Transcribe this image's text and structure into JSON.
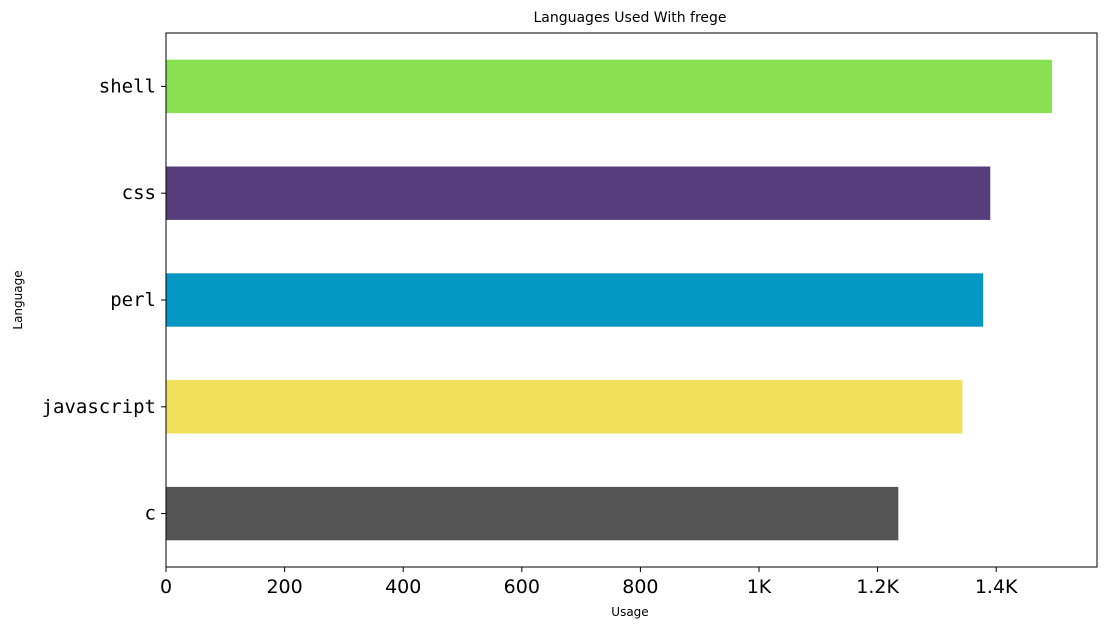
{
  "chart_data": {
    "type": "bar",
    "orientation": "horizontal",
    "title": "Languages Used With frege",
    "xlabel": "Usage",
    "ylabel": "Language",
    "categories": [
      "c",
      "javascript",
      "perl",
      "css",
      "shell"
    ],
    "values": [
      1235,
      1343,
      1378,
      1390,
      1494
    ],
    "colors": [
      "#555555",
      "#f1e05a",
      "#0298c3",
      "#563d7c",
      "#89e051"
    ],
    "xlim": [
      0,
      1570
    ],
    "xticks": [
      0,
      200,
      400,
      600,
      800,
      1000,
      1200,
      1400
    ],
    "xtick_labels": [
      "0",
      "200",
      "400",
      "600",
      "800",
      "1K",
      "1.2K",
      "1.4K"
    ],
    "grid": false,
    "legend": "none"
  }
}
